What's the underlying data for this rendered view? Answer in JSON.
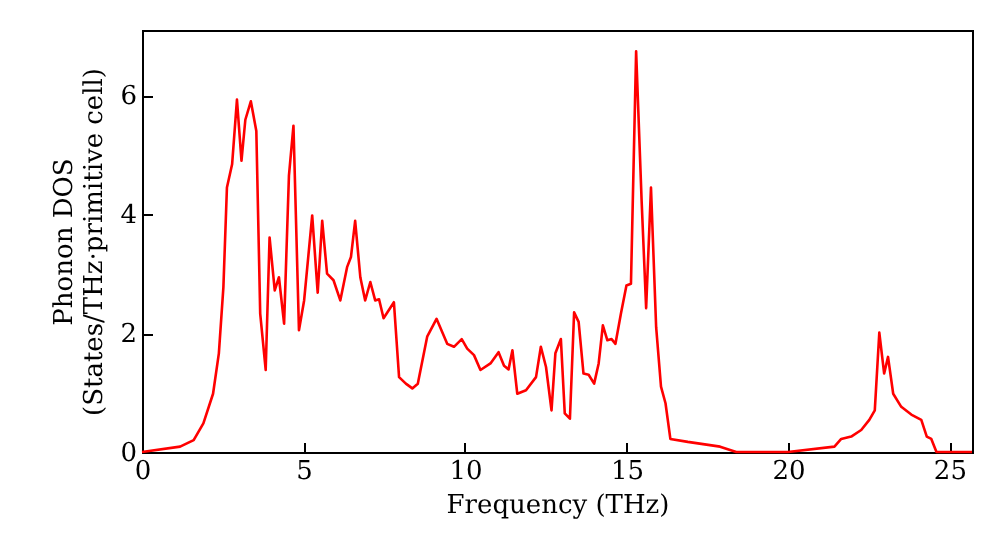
{
  "chart_data": {
    "type": "line",
    "xlabel": "Frequency (THz)",
    "ylabel": "Phonon DOS\n(States/THz·primitive cell)",
    "x": [
      0,
      1.18,
      1.6,
      1.9,
      2.2,
      2.38,
      2.52,
      2.63,
      2.79,
      2.94,
      3.08,
      3.2,
      3.37,
      3.54,
      3.66,
      3.83,
      3.95,
      4.11,
      4.24,
      4.4,
      4.55,
      4.69,
      4.86,
      5.02,
      5.27,
      5.44,
      5.58,
      5.73,
      5.93,
      6.14,
      6.35,
      6.47,
      6.6,
      6.76,
      6.91,
      7.07,
      7.22,
      7.34,
      7.48,
      7.8,
      7.96,
      8.17,
      8.37,
      8.54,
      8.83,
      9.12,
      9.45,
      9.66,
      9.9,
      10.07,
      10.28,
      10.48,
      10.79,
      11.04,
      11.21,
      11.35,
      11.47,
      11.62,
      11.89,
      12.2,
      12.35,
      12.51,
      12.68,
      12.8,
      12.97,
      13.09,
      13.25,
      13.38,
      13.52,
      13.67,
      13.83,
      14.0,
      14.14,
      14.27,
      14.41,
      14.54,
      14.66,
      14.83,
      15.0,
      15.14,
      15.3,
      15.47,
      15.61,
      15.76,
      15.92,
      16.07,
      16.21,
      16.36,
      16.9,
      17.9,
      18.4,
      20.0,
      21.44,
      21.65,
      21.96,
      22.27,
      22.52,
      22.69,
      22.83,
      22.98,
      23.1,
      23.26,
      23.51,
      23.82,
      24.13,
      24.3,
      24.44,
      24.6,
      25.7
    ],
    "series": [
      {
        "color": "#ff0000",
        "values": [
          0,
          0.09,
          0.2,
          0.48,
          0.98,
          1.66,
          2.77,
          4.45,
          4.84,
          5.93,
          4.9,
          5.59,
          5.9,
          5.4,
          2.33,
          1.38,
          3.61,
          2.72,
          2.94,
          2.16,
          4.65,
          5.49,
          2.05,
          2.55,
          3.98,
          2.68,
          3.89,
          3.0,
          2.89,
          2.55,
          3.11,
          3.28,
          3.89,
          2.94,
          2.55,
          2.86,
          2.55,
          2.57,
          2.25,
          2.52,
          1.26,
          1.15,
          1.07,
          1.15,
          1.94,
          2.24,
          1.82,
          1.77,
          1.9,
          1.74,
          1.63,
          1.38,
          1.49,
          1.68,
          1.45,
          1.39,
          1.71,
          0.98,
          1.04,
          1.26,
          1.77,
          1.43,
          0.7,
          1.66,
          1.9,
          0.65,
          0.56,
          2.35,
          2.19,
          1.32,
          1.3,
          1.15,
          1.49,
          2.13,
          1.88,
          1.9,
          1.82,
          2.33,
          2.8,
          2.83,
          6.74,
          4.23,
          2.42,
          4.45,
          2.1,
          1.1,
          0.82,
          0.22,
          0.17,
          0.09,
          0,
          0,
          0.09,
          0.22,
          0.26,
          0.37,
          0.54,
          0.7,
          2.01,
          1.32,
          1.6,
          0.98,
          0.76,
          0.63,
          0.54,
          0.26,
          0.22,
          0,
          0
        ]
      }
    ],
    "xlim": [
      0,
      25.7
    ],
    "ylim": [
      0,
      7.1
    ],
    "xticks": [
      0,
      5,
      10,
      15,
      20,
      25
    ],
    "yticks": [
      0,
      2,
      4,
      6
    ],
    "grid": false,
    "line_style": "solid",
    "marker": "none"
  }
}
